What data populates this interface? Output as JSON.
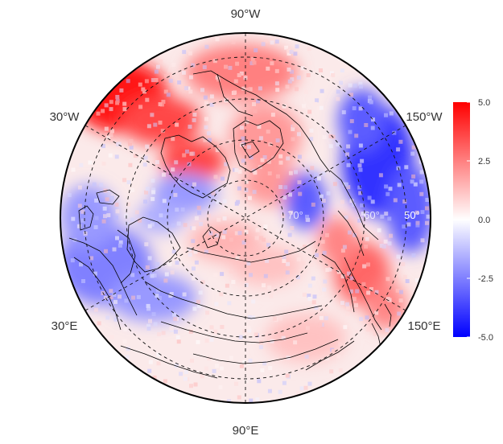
{
  "map": {
    "projection": "north-polar-stereographic",
    "graticule_style": "dashed",
    "longitude_labels": [
      {
        "id": "lon-90w",
        "text": "90°W"
      },
      {
        "id": "lon-30w",
        "text": "30°W"
      },
      {
        "id": "lon-150w",
        "text": "150°W"
      },
      {
        "id": "lon-30e",
        "text": "30°E"
      },
      {
        "id": "lon-150e",
        "text": "150°E"
      },
      {
        "id": "lon-90e",
        "text": "90°E"
      }
    ],
    "latitude_labels": [
      {
        "id": "lat-70",
        "text": "70°"
      },
      {
        "id": "lat-60",
        "text": "60°"
      },
      {
        "id": "lat-50",
        "text": "50°"
      }
    ],
    "anomaly_pattern": [
      {
        "region": "northwest-atlantic-greenland",
        "value": 4.5
      },
      {
        "region": "central-arctic-canada",
        "value": 2.5
      },
      {
        "region": "north-pacific-alaska",
        "value": -4.0
      },
      {
        "region": "siberia-west",
        "value": -2.5
      },
      {
        "region": "east-siberia-kamchatka",
        "value": 3.0
      },
      {
        "region": "europe-scandinavia",
        "value": -2.0
      },
      {
        "region": "central-asia",
        "value": 1.5
      }
    ]
  },
  "colorbar": {
    "colors": {
      "low": "#0000ff",
      "mid": "#ffffff",
      "high": "#ff0000"
    },
    "min": -5.0,
    "max": 5.0,
    "ticks": [
      {
        "value": 5.0,
        "label": "5.0"
      },
      {
        "value": 2.5,
        "label": "2.5"
      },
      {
        "value": 0.0,
        "label": "0.0"
      },
      {
        "value": -2.5,
        "label": "-2.5"
      },
      {
        "value": -5.0,
        "label": "-5.0"
      }
    ]
  }
}
